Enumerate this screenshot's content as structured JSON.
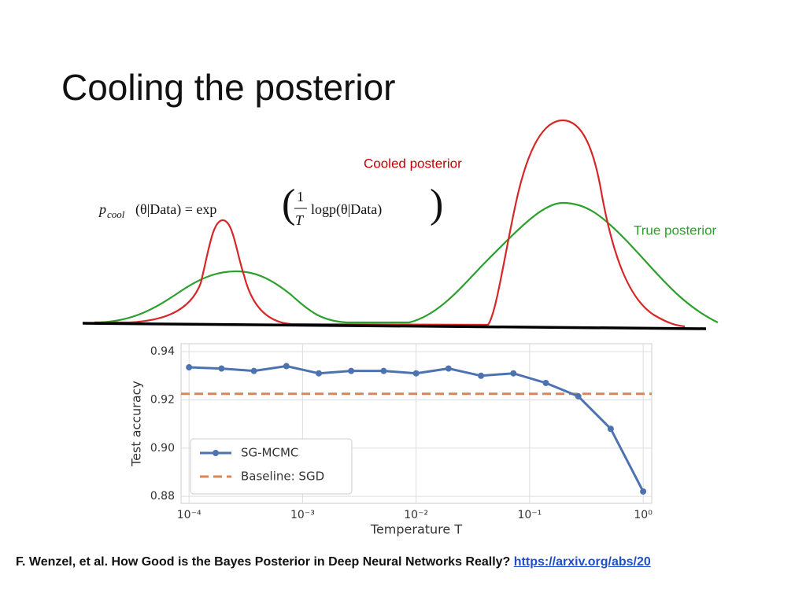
{
  "slide": {
    "title": "Cooling the posterior",
    "equation": {
      "p": "p",
      "sub": "cool",
      "lhs": "(θ|Data) = exp",
      "num": "1",
      "den": "T",
      "arg": "logp(θ|Data)"
    },
    "cooled_label": "Cooled posterior",
    "true_label": "True posterior",
    "citation": "F. Wenzel, et al. How Good is the Bayes Posterior in Deep Neural Networks Really?",
    "link": "https://arxiv.org/abs/20"
  },
  "chart_data": {
    "type": "line",
    "xlabel": "Temperature T",
    "ylabel": "Test accuracy",
    "xscale": "log",
    "x": [
      0.0001,
      0.000193,
      0.000373,
      0.00072,
      0.00139,
      0.00268,
      0.00518,
      0.01,
      0.0193,
      0.0373,
      0.072,
      0.139,
      0.268,
      0.518,
      1
    ],
    "series": [
      {
        "name": "SG-MCMC",
        "color": "#4c72b0",
        "values": [
          0.9335,
          0.933,
          0.932,
          0.934,
          0.931,
          0.932,
          0.932,
          0.931,
          0.933,
          0.93,
          0.931,
          0.927,
          0.9215,
          0.908,
          0.882
        ]
      }
    ],
    "baseline": {
      "name": "Baseline: SGD",
      "color": "#dd8452",
      "value": 0.9225
    },
    "xlim": [
      8.5e-05,
      1.19
    ],
    "ylim": [
      0.8771,
      0.9433
    ],
    "xticks": [
      {
        "value": 0.0001,
        "label": "10⁻⁴"
      },
      {
        "value": 0.001,
        "label": "10⁻³"
      },
      {
        "value": 0.01,
        "label": "10⁻²"
      },
      {
        "value": 0.1,
        "label": "10⁻¹"
      },
      {
        "value": 1,
        "label": "10⁰"
      }
    ],
    "yticks": [
      0.88,
      {
        "value": 0.9,
        "label": "0.90"
      },
      0.92,
      0.94
    ],
    "grid": true,
    "legend": "lower left"
  }
}
